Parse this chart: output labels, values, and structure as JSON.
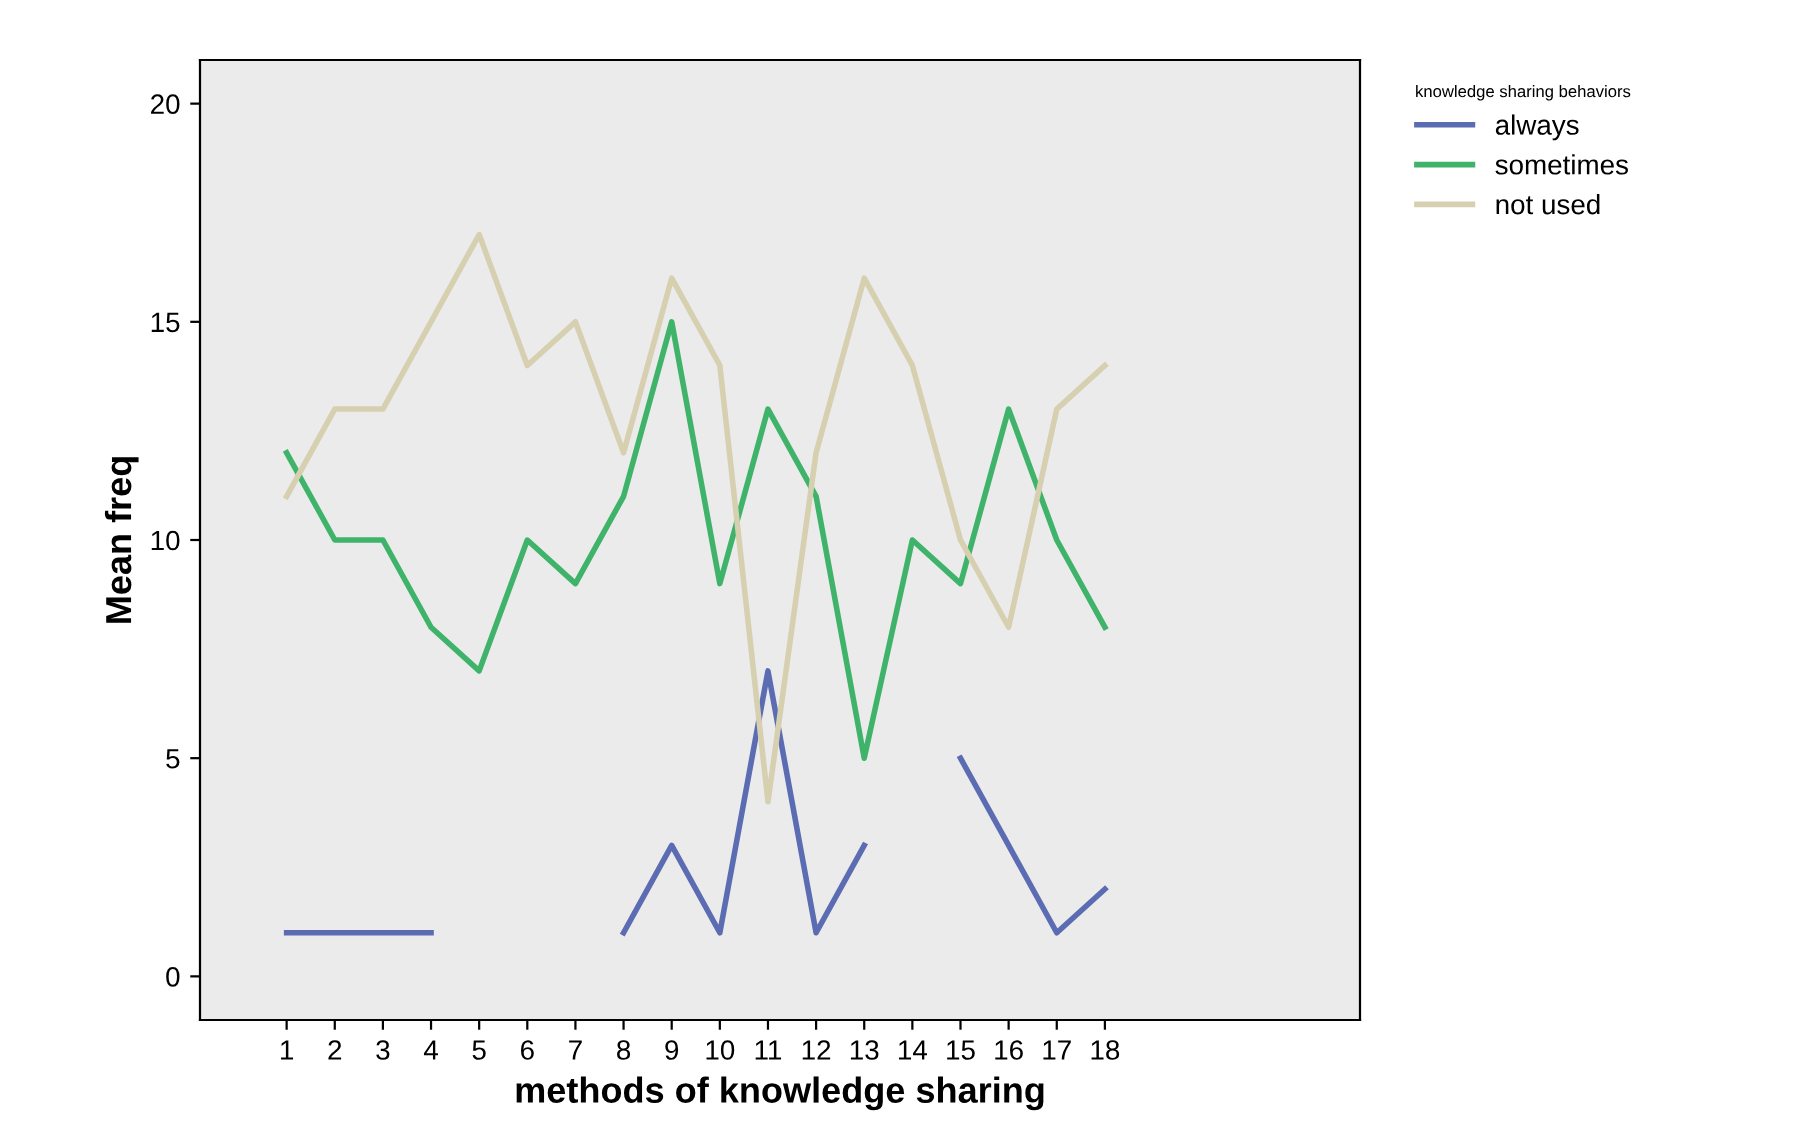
{
  "chart_data": {
    "type": "line",
    "xlabel": "methods of knowledge sharing",
    "ylabel": "Mean freq",
    "legend_title": "knowledge sharing behaviors",
    "x": [
      1,
      2,
      3,
      4,
      5,
      6,
      7,
      8,
      9,
      10,
      11,
      12,
      13,
      14,
      15,
      16,
      17,
      18
    ],
    "series": [
      {
        "name": "always",
        "color": "#5b6cb2",
        "values": [
          1,
          1,
          1,
          1,
          null,
          null,
          null,
          1,
          3,
          1,
          7,
          1,
          3,
          null,
          5,
          3,
          1,
          2
        ]
      },
      {
        "name": "sometimes",
        "color": "#3fb36a",
        "values": [
          12,
          10,
          10,
          8,
          7,
          10,
          9,
          11,
          15,
          9,
          13,
          11,
          5,
          10,
          9,
          13,
          10,
          8
        ]
      },
      {
        "name": "not used",
        "color": "#d6d0b0",
        "values": [
          11,
          13,
          13,
          15,
          17,
          14,
          15,
          12,
          16,
          14,
          4,
          12,
          16,
          14,
          10,
          8,
          13,
          14
        ]
      }
    ],
    "xlim": [
      -0.8,
      23.3
    ],
    "xticks": [
      1,
      2,
      3,
      4,
      5,
      6,
      7,
      8,
      9,
      10,
      11,
      12,
      13,
      14,
      15,
      16,
      17,
      18
    ],
    "ylim": [
      -1,
      21
    ],
    "yticks": [
      0,
      5,
      10,
      15,
      20
    ],
    "grid": false,
    "legend": "top right",
    "marker": "none",
    "line_style": "solid"
  }
}
